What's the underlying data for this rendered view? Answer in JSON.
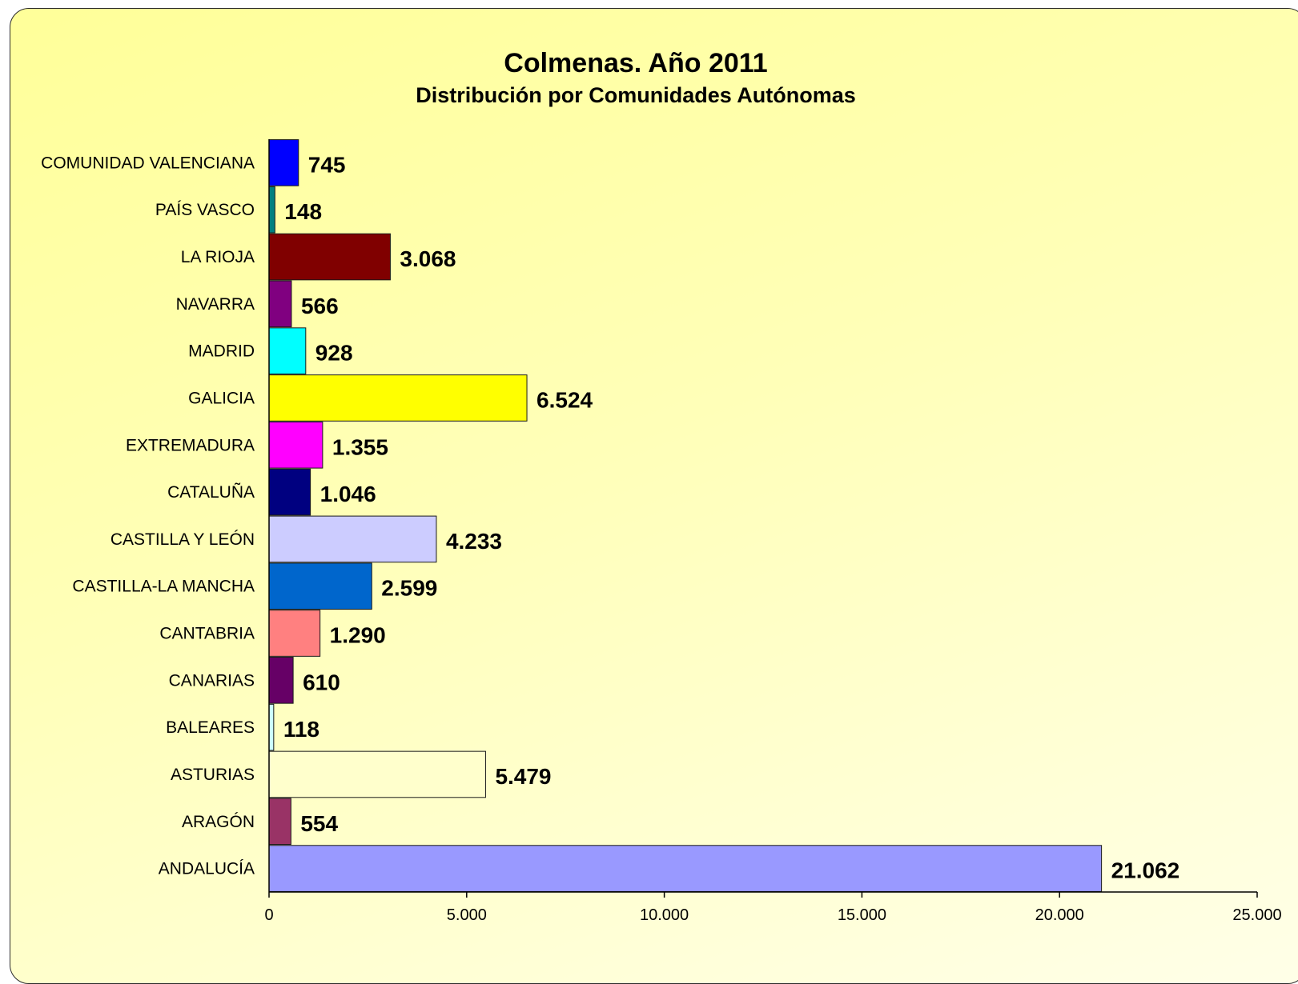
{
  "chart_data": {
    "type": "bar",
    "orientation": "horizontal",
    "title": "Colmenas. Año 2011",
    "subtitle": "Distribución por Comunidades Autónomas",
    "xlabel": "",
    "ylabel": "",
    "xlim": [
      0,
      25000
    ],
    "x_ticks": [
      0,
      5000,
      10000,
      15000,
      20000,
      25000
    ],
    "x_tick_labels": [
      "0",
      "5.000",
      "10.000",
      "15.000",
      "20.000",
      "25.000"
    ],
    "grid": false,
    "legend": "none",
    "background_color": "#ffff99",
    "categories": [
      "COMUNIDAD VALENCIANA",
      "PAÍS VASCO",
      "LA RIOJA",
      "NAVARRA",
      "MADRID",
      "GALICIA",
      "EXTREMADURA",
      "CATALUÑA",
      "CASTILLA Y LEÓN",
      "CASTILLA-LA MANCHA",
      "CANTABRIA",
      "CANARIAS",
      "BALEARES",
      "ASTURIAS",
      "ARAGÓN",
      "ANDALUCÍA"
    ],
    "values": [
      745,
      148,
      3068,
      566,
      928,
      6524,
      1355,
      1046,
      4233,
      2599,
      1290,
      610,
      118,
      5479,
      554,
      21062
    ],
    "value_labels": [
      "745",
      "148",
      "3.068",
      "566",
      "928",
      "6.524",
      "1.355",
      "1.046",
      "4.233",
      "2.599",
      "1.290",
      "610",
      "118",
      "5.479",
      "554",
      "21.062"
    ],
    "colors": [
      "#0000ff",
      "#008080",
      "#800000",
      "#800080",
      "#00ffff",
      "#ffff00",
      "#ff00ff",
      "#000080",
      "#ccccff",
      "#0066cc",
      "#ff8080",
      "#660066",
      "#ccffff",
      "#ffffcc",
      "#993366",
      "#9999ff"
    ]
  }
}
